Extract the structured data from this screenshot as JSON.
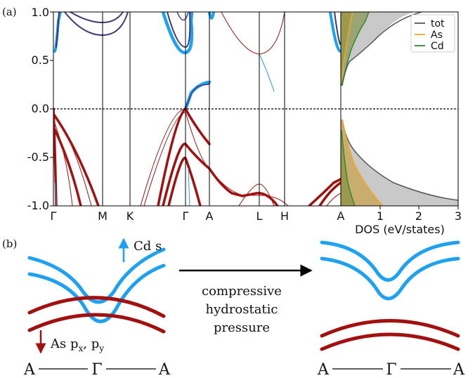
{
  "panel_a": {
    "label": "(a)",
    "y_ticks": [
      "1.0",
      "0.5",
      "0.0",
      "-0.5",
      "-1.0"
    ],
    "k_labels": [
      "Γ",
      "M",
      "K",
      "Γ",
      "A",
      "L",
      "H",
      "A"
    ],
    "dos_x_ticks": [
      "1",
      "2",
      "3"
    ],
    "dos_xlabel": "DOS (eV/states)",
    "legend": [
      {
        "name": "tot",
        "color": "#555555"
      },
      {
        "name": "As",
        "color": "#f5a623"
      },
      {
        "name": "Cd",
        "color": "#2e8b2e"
      }
    ]
  },
  "panel_b": {
    "label": "(b)",
    "cd_label": "Cd s",
    "as_label": "As p",
    "as_sub1": "x",
    "as_sep": ", p",
    "as_sub2": "y",
    "arrow_text": [
      "compressive",
      "hydrostatic",
      "pressure"
    ],
    "left_k": [
      "A",
      "Γ",
      "A"
    ],
    "right_k": [
      "A",
      "Γ",
      "A"
    ]
  },
  "colors": {
    "cond_band": "#1da1f2",
    "val_band": "#a31010",
    "dos_fill": "#c9c9c9"
  },
  "chart_data": [
    {
      "type": "line",
      "title": "",
      "xlabel": "",
      "ylabel": "",
      "ylim": [
        -1.0,
        1.0
      ],
      "categories": [
        "Γ",
        "M",
        "K",
        "Γ",
        "A",
        "L",
        "H",
        "A"
      ],
      "fermi_level": 0.0
    },
    {
      "type": "area",
      "xlabel": "DOS (eV/states)",
      "xlim": [
        0,
        3
      ],
      "ylim": [
        -1.0,
        1.0
      ],
      "series": [
        {
          "name": "tot",
          "x": [
            0.55,
            0.9,
            1.6,
            2.5,
            2.9
          ],
          "y": [
            0.25,
            0.5,
            0.75,
            0.95,
            1.0
          ]
        },
        {
          "name": "As",
          "x": [
            0.05,
            0.15,
            0.3,
            0.4
          ],
          "y": [
            0.3,
            0.6,
            0.85,
            1.0
          ]
        },
        {
          "name": "Cd",
          "x": [
            0.15,
            0.3,
            0.55,
            0.8
          ],
          "y": [
            0.3,
            0.6,
            0.85,
            1.0
          ]
        }
      ]
    }
  ]
}
